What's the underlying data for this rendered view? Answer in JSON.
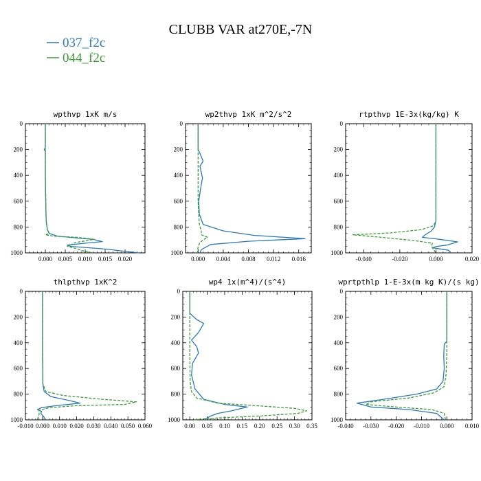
{
  "title": "CLUBB VAR at270E,-7N",
  "legend": [
    {
      "label": "037_f2c",
      "color": "#2a7ab8",
      "dash": "solid"
    },
    {
      "label": "044_f2c",
      "color": "#3a9e35",
      "dash": "dashed"
    }
  ],
  "chart_data": [
    {
      "type": "line",
      "title": "wpthvp  1xK m/s",
      "xlim": [
        -0.005,
        0.025
      ],
      "xticks": [
        "0.000",
        "0.005",
        "0.010",
        "0.015",
        "0.020"
      ],
      "xtick_values": [
        0,
        0.005,
        0.01,
        0.015,
        0.02
      ],
      "ylim": [
        0,
        1000
      ],
      "yticks": [
        "0",
        "200",
        "400",
        "600",
        "800",
        "1000"
      ],
      "y_inverted": true,
      "series": [
        {
          "name": "037_f2c",
          "x": [
            0,
            0,
            -0.0003,
            0,
            0,
            0.0001,
            0.0002,
            0.0005,
            0.001,
            0.003,
            0.008,
            0.012,
            0.0143,
            0.01,
            0.0055,
            0.0065,
            0.015,
            0.0205,
            0.0235
          ],
          "y": [
            0,
            185,
            200,
            215,
            400,
            600,
            750,
            820,
            850,
            870,
            885,
            895,
            913,
            925,
            940,
            950,
            970,
            990,
            1000
          ]
        },
        {
          "name": "044_f2c",
          "x": [
            0,
            0,
            0,
            0.0001,
            0.0002,
            0.0005,
            0.001,
            0,
            0.002,
            0.008,
            0.0122,
            0.0075,
            0.0055,
            0.007,
            0.0095,
            0.012
          ],
          "y": [
            0,
            200,
            400,
            600,
            760,
            820,
            850,
            860,
            870,
            880,
            895,
            920,
            950,
            960,
            985,
            1000
          ]
        }
      ]
    },
    {
      "type": "line",
      "title": "wp2thvp  1xK m^2/s^2",
      "xlim": [
        -0.002,
        0.018
      ],
      "xticks": [
        "0.000",
        "0.004",
        "0.008",
        "0.012",
        "0.016"
      ],
      "xtick_values": [
        0,
        0.004,
        0.008,
        0.012,
        0.016
      ],
      "ylim": [
        0,
        1000
      ],
      "yticks": [
        "0",
        "200",
        "400",
        "600",
        "800",
        "1000"
      ],
      "y_inverted": true,
      "series": [
        {
          "name": "037_f2c",
          "x": [
            0,
            0,
            0.0003,
            0.0008,
            0.0003,
            0.0007,
            0.0004,
            0.0001,
            0.0002,
            0.0008,
            0.004,
            0.009,
            0.017,
            0.008,
            0.002,
            0.0005,
            0.0003
          ],
          "y": [
            0,
            200,
            230,
            290,
            330,
            420,
            500,
            600,
            700,
            780,
            830,
            865,
            890,
            910,
            935,
            975,
            1000
          ]
        },
        {
          "name": "044_f2c",
          "x": [
            0,
            0,
            0,
            0,
            0.0001,
            0.0002,
            0.0005,
            0.0005,
            0.0015,
            0.0008,
            0.0003,
            0,
            -0.0001
          ],
          "y": [
            0,
            200,
            400,
            600,
            700,
            780,
            830,
            860,
            880,
            900,
            920,
            950,
            1000
          ]
        }
      ]
    },
    {
      "type": "line",
      "title": "rtpthvp  1E-3x(kg/kg) K",
      "xlim": [
        -0.05,
        0.02
      ],
      "xticks": [
        "-0.040",
        "-0.020",
        "0.000",
        "0.020"
      ],
      "xtick_values": [
        -0.04,
        -0.02,
        0,
        0.02
      ],
      "ylim": [
        0,
        1000
      ],
      "yticks": [
        "0",
        "200",
        "400",
        "600",
        "800",
        "1000"
      ],
      "y_inverted": true,
      "series": [
        {
          "name": "037_f2c",
          "x": [
            0,
            0,
            0,
            0,
            -0.0008,
            -0.0025,
            -0.006,
            -0.0075,
            0.002,
            0.012,
            0.006,
            0.0005,
            -0.002,
            0.007,
            0.008
          ],
          "y": [
            0,
            200,
            500,
            750,
            800,
            830,
            860,
            880,
            895,
            915,
            940,
            950,
            960,
            980,
            1000
          ]
        },
        {
          "name": "044_f2c",
          "x": [
            0,
            0,
            0,
            0,
            -0.0013,
            -0.008,
            -0.025,
            -0.046,
            -0.03,
            -0.012,
            -0.002,
            -0.0025,
            -0.001,
            0
          ],
          "y": [
            0,
            200,
            500,
            750,
            790,
            820,
            845,
            860,
            880,
            905,
            925,
            950,
            980,
            1000
          ]
        }
      ]
    },
    {
      "type": "line",
      "title": "thlpthvp  1xK^2",
      "xlim": [
        -0.01,
        0.06
      ],
      "xticks": [
        "-0.010",
        "0.000",
        "0.010",
        "0.020",
        "0.030",
        "0.040",
        "0.050",
        "0.060"
      ],
      "xtick_values": [
        -0.01,
        0,
        0.01,
        0.02,
        0.03,
        0.04,
        0.05,
        0.06
      ],
      "ylim": [
        0,
        1000
      ],
      "yticks": [
        "0",
        "200",
        "400",
        "600",
        "800",
        "1000"
      ],
      "y_inverted": true,
      "series": [
        {
          "name": "037_f2c",
          "x": [
            0,
            0,
            0,
            0.0002,
            0.001,
            0.005,
            0.016,
            0.022,
            0.008,
            -0.0005,
            -0.003,
            -0.0005,
            -0.001,
            0.001,
            0.001
          ],
          "y": [
            0,
            200,
            500,
            720,
            780,
            820,
            850,
            870,
            890,
            905,
            920,
            935,
            950,
            980,
            1000
          ]
        },
        {
          "name": "044_f2c",
          "x": [
            0,
            0,
            0,
            0.0002,
            0.002,
            0.012,
            0.035,
            0.055,
            0.048,
            0.02,
            0.004,
            -0.002,
            -0.002,
            -0.003
          ],
          "y": [
            0,
            200,
            500,
            720,
            780,
            810,
            840,
            860,
            880,
            890,
            905,
            925,
            960,
            1000
          ]
        }
      ]
    },
    {
      "type": "line",
      "title": "wp4  1x(m^4)/(s^4)",
      "xlim": [
        -0.02,
        0.35
      ],
      "xticks": [
        "0.00",
        "0.05",
        "0.10",
        "0.15",
        "0.20",
        "0.25",
        "0.30",
        "0.35"
      ],
      "xtick_values": [
        0,
        0.05,
        0.1,
        0.15,
        0.2,
        0.25,
        0.3,
        0.35
      ],
      "ylim": [
        0,
        1000
      ],
      "yticks": [
        "0",
        "200",
        "400",
        "600",
        "800",
        "1000"
      ],
      "y_inverted": true,
      "series": [
        {
          "name": "037_f2c",
          "x": [
            0,
            0,
            0.02,
            0.04,
            0.025,
            0.005,
            0.02,
            0.025,
            0.008,
            0.005,
            0.015,
            0.04,
            0.1,
            0.165,
            0.12,
            0.08,
            0.06,
            0.04
          ],
          "y": [
            0,
            170,
            220,
            250,
            320,
            380,
            430,
            480,
            560,
            650,
            760,
            840,
            880,
            900,
            930,
            950,
            970,
            1000
          ]
        },
        {
          "name": "044_f2c",
          "x": [
            0,
            0,
            0,
            0.001,
            0.005,
            0.02,
            0.08,
            0.19,
            0.3,
            0.335,
            0.31,
            0.2,
            0.08,
            0.03,
            0.01
          ],
          "y": [
            0,
            200,
            500,
            700,
            780,
            830,
            870,
            890,
            910,
            930,
            950,
            970,
            985,
            995,
            1000
          ]
        }
      ]
    },
    {
      "type": "line",
      "title": "wprtpthlp  1-E-3x(m kg K)/(s kg)",
      "xlim": [
        -0.04,
        0.01
      ],
      "xticks": [
        "-0.040",
        "-0.030",
        "-0.020",
        "-0.010",
        "0.000",
        "0.010"
      ],
      "xtick_values": [
        -0.04,
        -0.03,
        -0.02,
        -0.01,
        0,
        0.01
      ],
      "ylim": [
        0,
        1000
      ],
      "yticks": [
        "0",
        "200",
        "400",
        "600",
        "800",
        "1000"
      ],
      "y_inverted": true,
      "series": [
        {
          "name": "037_f2c",
          "x": [
            0,
            0,
            0,
            -0.001,
            -0.0012,
            -0.001,
            -0.0015,
            -0.004,
            -0.012,
            -0.025,
            -0.0355,
            -0.03,
            -0.015,
            -0.004,
            -0.001
          ],
          "y": [
            0,
            200,
            390,
            410,
            500,
            600,
            700,
            760,
            800,
            840,
            870,
            900,
            920,
            950,
            1000
          ]
        },
        {
          "name": "044_f2c",
          "x": [
            0,
            0,
            0,
            -0.0003,
            -0.001,
            -0.005,
            -0.015,
            -0.03,
            -0.032,
            -0.02,
            -0.006,
            -0.001,
            -0.0005
          ],
          "y": [
            0,
            200,
            500,
            650,
            740,
            790,
            830,
            860,
            880,
            900,
            920,
            950,
            1000
          ]
        }
      ]
    }
  ]
}
